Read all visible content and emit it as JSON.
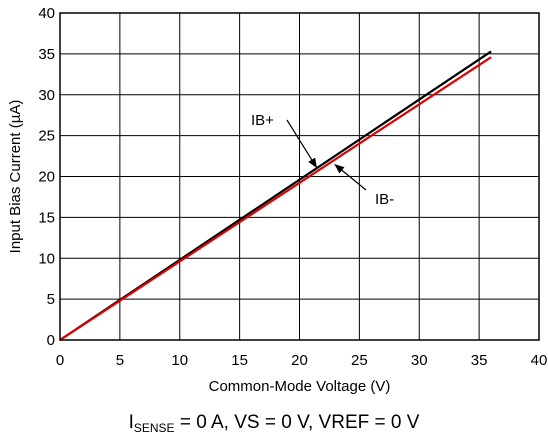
{
  "chart_data": {
    "type": "line",
    "xlabel": "Common-Mode Voltage (V)",
    "ylabel": "Input Bias Current (µA)",
    "xlim": [
      0,
      40
    ],
    "ylim": [
      0,
      40
    ],
    "xticks": [
      "0",
      "5",
      "10",
      "15",
      "20",
      "25",
      "30",
      "35",
      "40"
    ],
    "yticks": [
      "0",
      "5",
      "10",
      "15",
      "20",
      "25",
      "30",
      "35",
      "40"
    ],
    "grid": true,
    "series": [
      {
        "name": "IB+",
        "color": "#000000",
        "x": [
          0,
          36
        ],
        "y": [
          0,
          35.3
        ]
      },
      {
        "name": "IB-",
        "color": "#dd0000",
        "x": [
          0,
          36
        ],
        "y": [
          0,
          34.6
        ]
      }
    ],
    "annotations": [
      {
        "text": "IB+",
        "arrow_to": [
          21.5,
          21.0
        ]
      },
      {
        "text": "IB-",
        "arrow_to": [
          22.8,
          21.7
        ]
      }
    ]
  },
  "caption": {
    "prefix": "I",
    "subscript": "SENSE",
    "rest": " = 0 A, VS = 0 V, VREF = 0 V"
  }
}
